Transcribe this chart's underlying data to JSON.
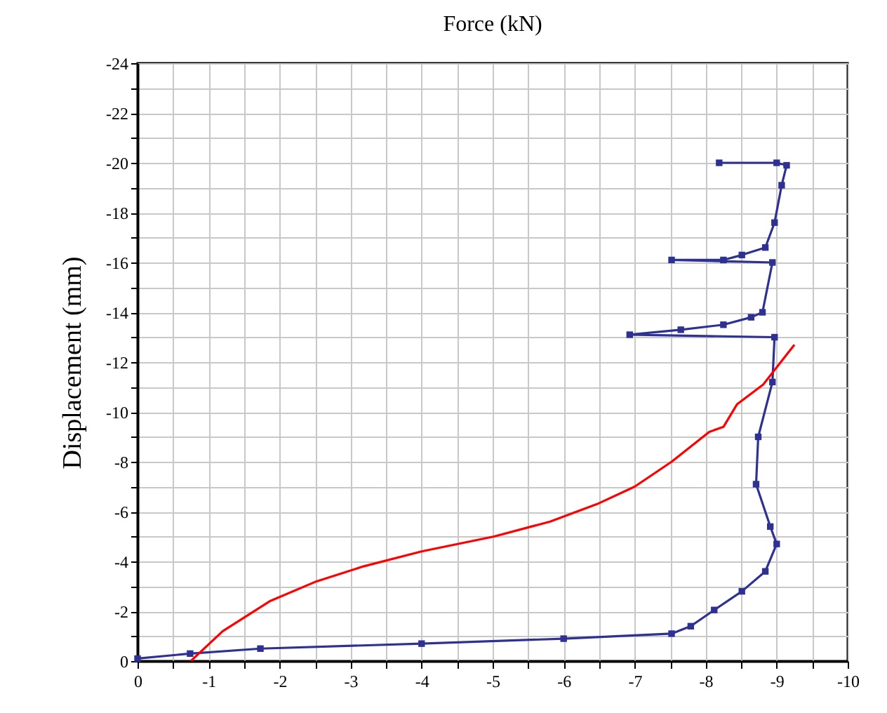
{
  "chart_data": {
    "type": "line",
    "xlabel": "Force (kN)",
    "ylabel": "Displacement (mm)",
    "xlim": [
      0,
      -10
    ],
    "ylim": [
      0,
      -24
    ],
    "xticks": [
      0,
      {
        "value": -0.5,
        "label": null
      },
      -1,
      {
        "value": -1.5,
        "label": null
      },
      -2,
      {
        "value": -2.5,
        "label": null
      },
      -3,
      {
        "value": -3.5,
        "label": null
      },
      -4,
      {
        "value": -4.5,
        "label": null
      },
      -5,
      {
        "value": -5.5,
        "label": null
      },
      -6,
      {
        "value": -6.5,
        "label": null
      },
      -7,
      {
        "value": -7.5,
        "label": null
      },
      -8,
      {
        "value": -8.5,
        "label": null
      },
      -9,
      {
        "value": -9.5,
        "label": null
      },
      -10
    ],
    "yticks": [
      0,
      {
        "value": -1,
        "label": null
      },
      -2,
      {
        "value": -3,
        "label": null
      },
      -4,
      {
        "value": -5,
        "label": null
      },
      -6,
      {
        "value": -7,
        "label": null
      },
      -8,
      {
        "value": -9,
        "label": null
      },
      -10,
      {
        "value": -11,
        "label": null
      },
      -12,
      {
        "value": -13,
        "label": null
      },
      -14,
      {
        "value": -15,
        "label": null
      },
      -16,
      {
        "value": -17,
        "label": null
      },
      -18,
      {
        "value": -19,
        "label": null
      },
      -20,
      {
        "value": -21,
        "label": null
      },
      -22,
      {
        "value": -23,
        "label": null
      },
      -24
    ],
    "grid": true,
    "series": [
      {
        "color": "#2e3192",
        "marker": "square",
        "x": [
          0,
          -0.74,
          -1.73,
          -4.0,
          -6.0,
          -7.52,
          -7.79,
          -8.12,
          -8.51,
          -8.84,
          -9.0,
          -8.91,
          -8.71,
          -8.74,
          -8.94,
          -8.97,
          -6.93,
          -7.65,
          -8.25,
          -8.64,
          -8.8,
          -8.94,
          -7.52,
          -8.25,
          -8.51,
          -8.84,
          -8.97,
          -9.07,
          -9.14,
          -9.0,
          -8.19
        ],
        "values": [
          -0.1,
          -0.3,
          -0.5,
          -0.7,
          -0.9,
          -1.1,
          -1.4,
          -2.05,
          -2.8,
          -3.6,
          -4.7,
          -5.4,
          -7.1,
          -9.0,
          -11.2,
          -13.0,
          -13.1,
          -13.3,
          -13.5,
          -13.8,
          -14.0,
          -16.0,
          -16.1,
          -16.1,
          -16.3,
          -16.6,
          -17.6,
          -19.1,
          -19.9,
          -20.0,
          -20.0
        ]
      },
      {
        "color": "#ff0000",
        "marker": "none",
        "x": [
          -0.75,
          -1.2,
          -1.86,
          -2.52,
          -3.18,
          -4.0,
          -5.02,
          -5.81,
          -6.47,
          -7.0,
          -7.52,
          -8.05,
          -8.25,
          -8.44,
          -8.81,
          -9.25
        ],
        "values": [
          0,
          -1.2,
          -2.4,
          -3.2,
          -3.8,
          -4.4,
          -5.0,
          -5.6,
          -6.3,
          -7.0,
          -8.0,
          -9.2,
          -9.4,
          -10.3,
          -11.1,
          -12.7
        ]
      }
    ]
  }
}
